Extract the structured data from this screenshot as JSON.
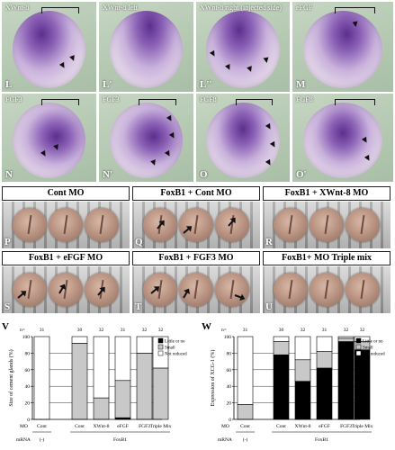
{
  "embryo_row1": [
    {
      "label": "L",
      "title": "XWnt-8"
    },
    {
      "label": "L'",
      "title": "XWnt-8 left"
    },
    {
      "label": "L''",
      "title": "XWnt-8 right (injected side)"
    },
    {
      "label": "M",
      "title": "eFGF"
    }
  ],
  "embryo_row2": [
    {
      "label": "N",
      "title": "FGF3"
    },
    {
      "label": "N'",
      "title": "FGF3"
    },
    {
      "label": "O",
      "title": "FGF8"
    },
    {
      "label": "O'",
      "title": "FGF8"
    }
  ],
  "mo_panels": [
    {
      "label": "P",
      "title": "Cont MO"
    },
    {
      "label": "Q",
      "title": "FoxB1 + Cont MO"
    },
    {
      "label": "R",
      "title": "FoxB1 + XWnt-8 MO"
    },
    {
      "label": "S",
      "title": "FoxB1 + eFGF MO"
    },
    {
      "label": "T",
      "title": "FoxB1 + FGF3 MO"
    },
    {
      "label": "U",
      "title": "FoxB1+ MO Triple mix"
    }
  ],
  "colors": {
    "little": "#000000",
    "small": "#c8c8c8",
    "not": "#ffffff",
    "stain": "#6a3d9a"
  },
  "chart_data": [
    {
      "type": "bar",
      "panel": "V",
      "ylabel": "Size of cement glands (%)",
      "ylim": [
        0,
        100
      ],
      "yticks": [
        "0",
        "20",
        "40",
        "60",
        "80",
        "100"
      ],
      "n_label": "n=",
      "n": [
        "31",
        "30",
        "32",
        "31",
        "32",
        "32"
      ],
      "categories": [
        "Cont",
        "Cont",
        "XWnt-8",
        "eFGF",
        "FGF3",
        "Triple Mix"
      ],
      "mo_label": "MO",
      "rna_label": "mRNA",
      "group_minus": "(-)",
      "group_foxb1": "FoxB1",
      "series": [
        {
          "name": "Little or no",
          "values": [
            0,
            0,
            0,
            2,
            0,
            0
          ]
        },
        {
          "name": "Small",
          "values": [
            0,
            92,
            26,
            45,
            80,
            62
          ]
        },
        {
          "name": "Not reduced",
          "values": [
            100,
            8,
            74,
            53,
            20,
            38
          ]
        }
      ]
    },
    {
      "type": "bar",
      "panel": "W",
      "ylabel": "Expression of XCG-1 (%)",
      "ylim": [
        0,
        100
      ],
      "yticks": [
        "0",
        "20",
        "40",
        "60",
        "80",
        "100"
      ],
      "n_label": "n=",
      "n": [
        "31",
        "30",
        "32",
        "31",
        "32",
        "32"
      ],
      "categories": [
        "Cont",
        "Cont",
        "XWnt-8",
        "eFGF",
        "FGF3",
        "Triple Mix"
      ],
      "mo_label": "MO",
      "rna_label": "mRNA",
      "group_minus": "(-)",
      "group_foxb1": "FoxB1",
      "series": [
        {
          "name": "Little or no",
          "values": [
            0,
            78,
            46,
            62,
            94,
            84
          ]
        },
        {
          "name": "Small",
          "values": [
            18,
            16,
            26,
            20,
            4,
            10
          ]
        },
        {
          "name": "Not reduced",
          "values": [
            82,
            6,
            28,
            18,
            2,
            6
          ]
        }
      ]
    }
  ]
}
